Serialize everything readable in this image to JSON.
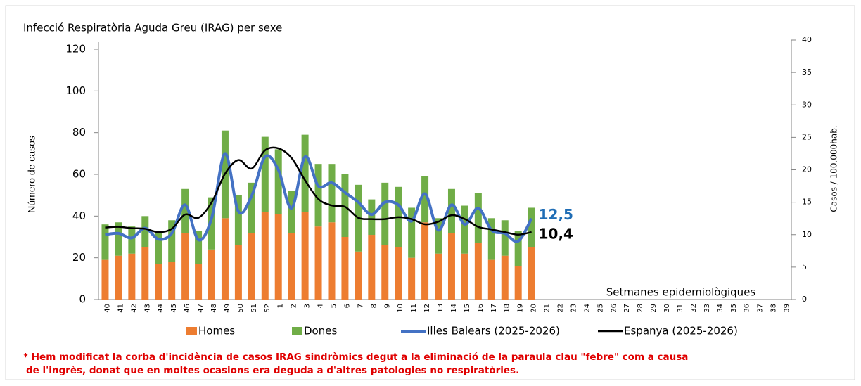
{
  "chart_data": {
    "type": "bar",
    "stacked": true,
    "title": "Infecció Respiratòria Aguda Greu (IRAG) per sexe",
    "y_label": "Número de casos",
    "y2_label": "Casos / 100.000hab.",
    "annotation": "Setmanes epidemiològiques",
    "footnote": [
      "* Hem modificat la corba d'incidència de casos IRAG sindròmics degut a la eliminació de la paraula clau \"febre\" com a causa",
      "de l'ingrès, donat que en moltes ocasions era deguda a d'altres patologies no respiratòries."
    ],
    "categories": [
      "40",
      "41",
      "42",
      "43",
      "44",
      "45",
      "46",
      "47",
      "48",
      "49",
      "50",
      "51",
      "52",
      "1",
      "2",
      "3",
      "4",
      "5",
      "6",
      "7",
      "8",
      "9",
      "10",
      "11",
      "12",
      "13",
      "14",
      "15",
      "16",
      "17",
      "18",
      "19",
      "20",
      "21",
      "22",
      "23",
      "24",
      "25",
      "26",
      "27",
      "28",
      "29",
      "30",
      "31",
      "32",
      "33",
      "34",
      "35",
      "36",
      "37",
      "38",
      "39"
    ],
    "ylim": [
      0,
      120
    ],
    "yticks": [
      0,
      20,
      40,
      60,
      80,
      100,
      120
    ],
    "y2lim": [
      0,
      40
    ],
    "y2ticks": [
      0,
      5,
      10,
      15,
      20,
      25,
      30,
      35,
      40
    ],
    "legend": "bottom",
    "series": [
      {
        "name": "Homes",
        "type": "bar",
        "color": "#ed7d31",
        "values": [
          19,
          21,
          22,
          25,
          17,
          18,
          32,
          17,
          24,
          39,
          26,
          32,
          42,
          41,
          32,
          42,
          35,
          37,
          30,
          23,
          31,
          26,
          25,
          20,
          37,
          22,
          32,
          22,
          27,
          19,
          21,
          16,
          25,
          null,
          null,
          null,
          null,
          null,
          null,
          null,
          null,
          null,
          null,
          null,
          null,
          null,
          null,
          null,
          null,
          null,
          null,
          null
        ]
      },
      {
        "name": "Dones",
        "type": "bar",
        "color": "#70ad47",
        "values": [
          17,
          16,
          13,
          15,
          16,
          20,
          21,
          16,
          25,
          42,
          24,
          24,
          36,
          31,
          20,
          37,
          30,
          28,
          30,
          32,
          17,
          30,
          29,
          24,
          22,
          17,
          21,
          23,
          24,
          20,
          17,
          17,
          19,
          null,
          null,
          null,
          null,
          null,
          null,
          null,
          null,
          null,
          null,
          null,
          null,
          null,
          null,
          null,
          null,
          null,
          null,
          null
        ]
      },
      {
        "name": "Illes Balears (2025-2026)",
        "type": "line",
        "axis": "y2",
        "color": "#4472c4",
        "values": [
          10.0,
          10.2,
          9.5,
          11.0,
          9.3,
          10.2,
          14.6,
          9.2,
          12.6,
          22.5,
          13.6,
          16.0,
          22.0,
          20.0,
          14.1,
          22.0,
          17.5,
          18.0,
          16.5,
          15.0,
          13.1,
          15.0,
          14.6,
          12.1,
          16.3,
          10.7,
          14.6,
          11.6,
          14.1,
          10.7,
          10.2,
          9.0,
          12.5,
          null,
          null,
          null,
          null,
          null,
          null,
          null,
          null,
          null,
          null,
          null,
          null,
          null,
          null,
          null,
          null,
          null,
          null,
          null
        ],
        "value_labels": [
          null,
          null,
          null,
          null,
          null,
          null,
          null,
          null,
          null,
          null,
          null,
          null,
          null,
          null,
          null,
          null,
          null,
          null,
          null,
          null,
          null,
          null,
          null,
          null,
          null,
          null,
          null,
          null,
          null,
          null,
          null,
          null,
          "12,5",
          null,
          null,
          null,
          null,
          null,
          null,
          null,
          null,
          null,
          null,
          null,
          null,
          null,
          null,
          null,
          null,
          null,
          null,
          null
        ],
        "label_color": "#1f6db5"
      },
      {
        "name": "Espanya (2025-2026)",
        "type": "line",
        "axis": "y2",
        "color": "#000000",
        "values": [
          11.1,
          11.2,
          11.0,
          10.9,
          10.4,
          10.9,
          13.1,
          12.6,
          15.0,
          19.4,
          21.5,
          20.2,
          23.0,
          23.3,
          21.8,
          18.4,
          15.5,
          14.5,
          14.3,
          12.6,
          12.4,
          12.4,
          12.7,
          12.4,
          11.6,
          12.0,
          13.0,
          12.4,
          11.2,
          10.8,
          10.4,
          10.0,
          10.4,
          null,
          null,
          null,
          null,
          null,
          null,
          null,
          null,
          null,
          null,
          null,
          null,
          null,
          null,
          null,
          null,
          null,
          null,
          null
        ],
        "value_labels": [
          null,
          null,
          null,
          null,
          null,
          null,
          null,
          null,
          null,
          null,
          null,
          null,
          null,
          null,
          null,
          null,
          null,
          null,
          null,
          null,
          null,
          null,
          null,
          null,
          null,
          null,
          null,
          null,
          null,
          null,
          null,
          null,
          "10,4",
          null,
          null,
          null,
          null,
          null,
          null,
          null,
          null,
          null,
          null,
          null,
          null,
          null,
          null,
          null,
          null,
          null,
          null,
          null
        ],
        "label_color": "#000000"
      }
    ]
  }
}
